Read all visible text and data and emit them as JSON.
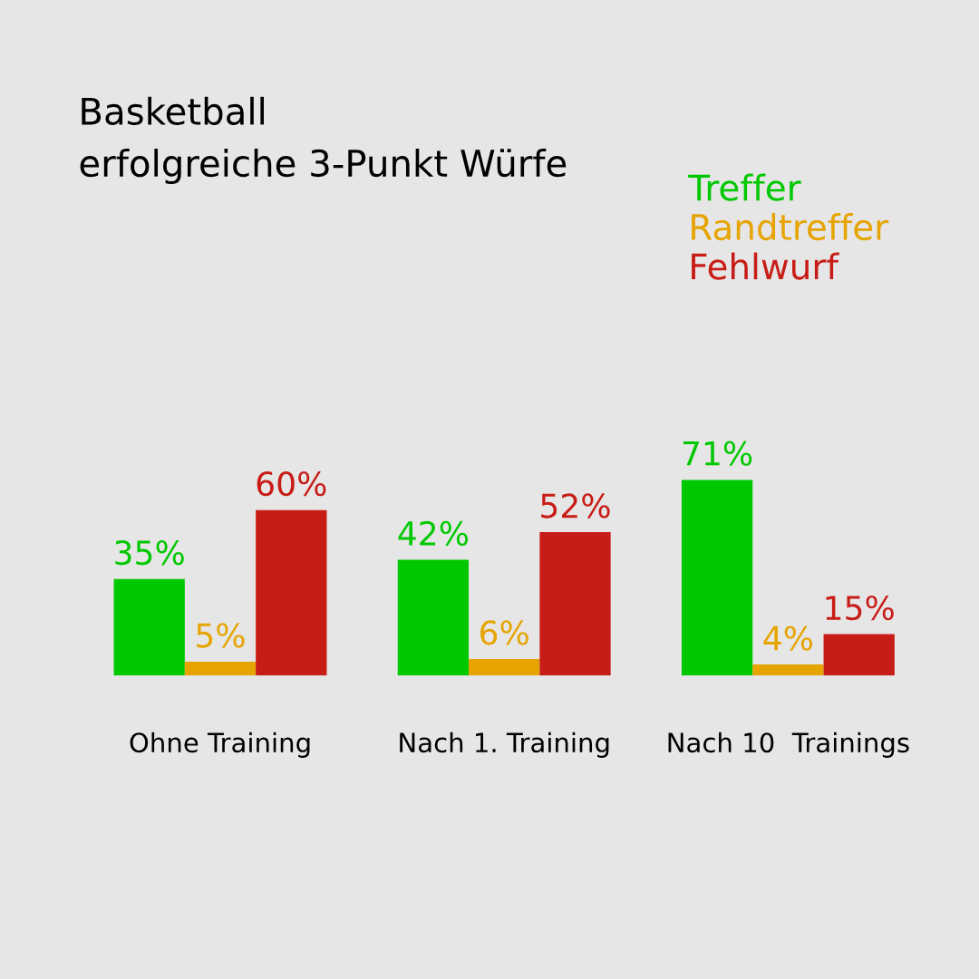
{
  "chart_data": {
    "type": "bar",
    "title": "Basketball",
    "subtitle": "erfolgreiche 3-Punkt Würfe",
    "categories": [
      "Ohne Training",
      "Nach 1. Training",
      "Nach 10  Trainings"
    ],
    "series": [
      {
        "name": "Treffer",
        "color": "#00c800",
        "values": [
          35,
          42,
          71
        ],
        "value_labels": [
          "35%",
          "42%",
          "71%"
        ]
      },
      {
        "name": "Randtreffer",
        "color": "#e6a400",
        "values": [
          5,
          6,
          4
        ],
        "value_labels": [
          "5%",
          "6%",
          "4%"
        ]
      },
      {
        "name": "Fehlwurf",
        "color": "#c81c16",
        "values": [
          60,
          52,
          15
        ],
        "value_labels": [
          "60%",
          "52%",
          "15%"
        ]
      }
    ],
    "legend": "top right",
    "grid": false
  }
}
